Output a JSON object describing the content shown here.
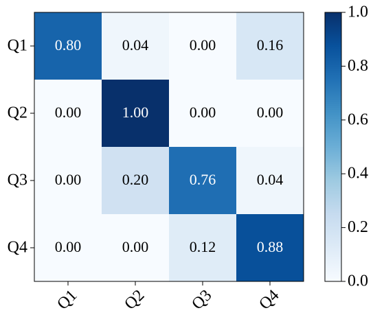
{
  "chart_data": {
    "type": "heatmap",
    "title": "",
    "xlabel": "",
    "ylabel": "",
    "x_categories": [
      "Q1",
      "Q2",
      "Q3",
      "Q4"
    ],
    "y_categories": [
      "Q1",
      "Q2",
      "Q3",
      "Q4"
    ],
    "values": [
      [
        0.8,
        0.04,
        0.0,
        0.16
      ],
      [
        0.0,
        1.0,
        0.0,
        0.0
      ],
      [
        0.0,
        0.2,
        0.76,
        0.04
      ],
      [
        0.0,
        0.0,
        0.12,
        0.88
      ]
    ],
    "cell_labels": [
      [
        "0.80",
        "0.04",
        "0.00",
        "0.16"
      ],
      [
        "0.00",
        "1.00",
        "0.00",
        "0.00"
      ],
      [
        "0.00",
        "0.20",
        "0.76",
        "0.04"
      ],
      [
        "0.00",
        "0.00",
        "0.12",
        "0.88"
      ]
    ],
    "colormap": "Blues",
    "colormap_stops": [
      "#f7fbff",
      "#deebf7",
      "#c6dbef",
      "#9ecae1",
      "#6baed6",
      "#4292c6",
      "#2171b5",
      "#08519c",
      "#08306b"
    ],
    "vlim": [
      0.0,
      1.0
    ],
    "colorbar": {
      "ticks": [
        0.0,
        0.2,
        0.4,
        0.6,
        0.8,
        1.0
      ],
      "tick_labels": [
        "0.0",
        "0.2",
        "0.4",
        "0.6",
        "0.8",
        "1.0"
      ]
    },
    "x_tick_rotation_deg": 45,
    "grid": false
  }
}
